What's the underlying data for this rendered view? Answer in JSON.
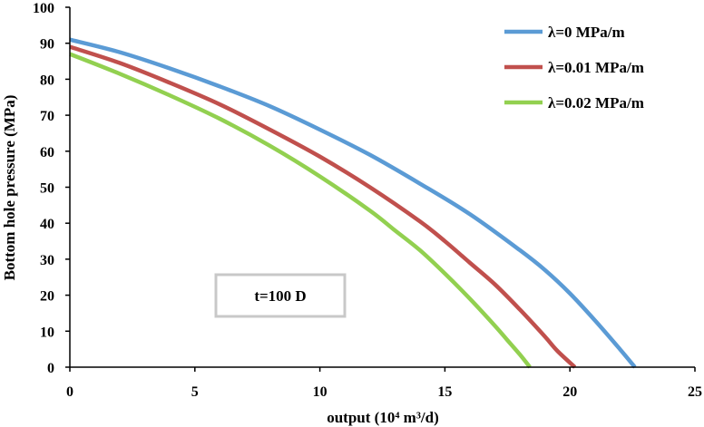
{
  "chart_data": {
    "type": "line",
    "title": "",
    "xlabel": "output   (10⁴ m³/d)",
    "ylabel": "Bottom hole pressure (MPa)",
    "xlim": [
      0,
      25
    ],
    "ylim": [
      0,
      100
    ],
    "xticks": [
      0,
      5,
      10,
      15,
      20,
      25
    ],
    "yticks": [
      0,
      10,
      20,
      30,
      40,
      50,
      60,
      70,
      80,
      90,
      100
    ],
    "grid": false,
    "legend_position": "top-right",
    "annotation": "t=100 D",
    "series": [
      {
        "name": "λ=0 MPa/m",
        "color": "#5B9BD5",
        "x": [
          0,
          2,
          4,
          6,
          8,
          10,
          12,
          14,
          16,
          18,
          19,
          20,
          21,
          22,
          22.6
        ],
        "y": [
          91,
          87.5,
          83,
          78,
          72.5,
          66,
          59,
          51,
          42.5,
          32.5,
          27,
          20.5,
          13,
          5,
          0
        ]
      },
      {
        "name": "λ=0.01 MPa/m",
        "color": "#C0504D",
        "x": [
          0,
          2,
          4,
          6,
          8,
          10,
          12,
          14,
          15,
          16,
          17,
          18,
          19,
          19.5,
          20.2
        ],
        "y": [
          89,
          84.5,
          79,
          73,
          66,
          58.5,
          50,
          40.5,
          35,
          29,
          23,
          16,
          8.5,
          4.5,
          0
        ]
      },
      {
        "name": "λ=0.02 MPa/m",
        "color": "#92D050",
        "x": [
          0,
          2,
          4,
          6,
          8,
          10,
          12,
          13,
          14,
          15,
          16,
          17,
          17.5,
          18,
          18.4
        ],
        "y": [
          87,
          81.5,
          75.5,
          69,
          61.5,
          53,
          43.5,
          38,
          32.5,
          26,
          19,
          11.5,
          7.5,
          3.5,
          0
        ]
      }
    ]
  }
}
